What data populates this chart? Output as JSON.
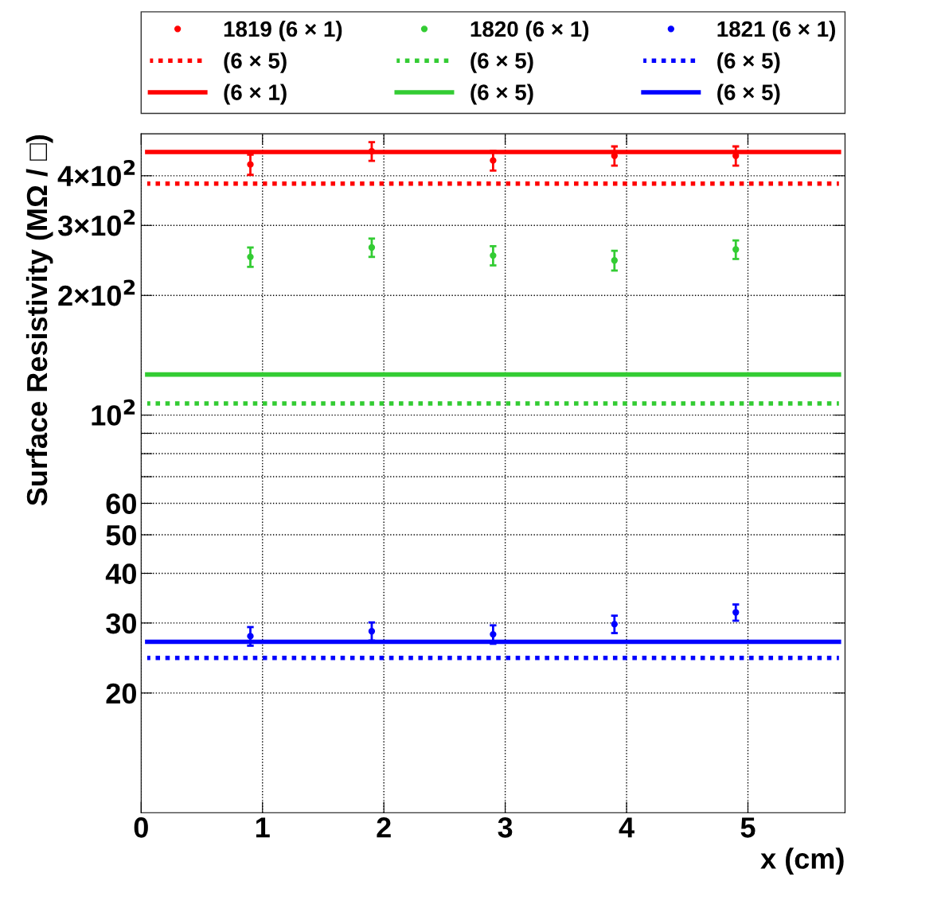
{
  "chart_data": {
    "type": "scatter",
    "xlabel": "x (cm)",
    "ylabel": "Surface Resistivity (MΩ / □)",
    "log": "y",
    "grid": true,
    "legend": "top",
    "xlim": [
      0,
      5.8
    ],
    "xticks": [
      0,
      1,
      2,
      3,
      4,
      5
    ],
    "ylim": [
      10,
      510
    ],
    "yticks": [
      20,
      30,
      40,
      50,
      60,
      {
        "value": 70,
        "label": null
      },
      {
        "value": 80,
        "label": null
      },
      {
        "value": 90,
        "label": null
      },
      {
        "value": 100,
        "label": "10$^{2}$"
      },
      {
        "value": 200,
        "label": "2×10$^{2}$"
      },
      {
        "value": 300,
        "label": "3×10$^{2}$"
      },
      {
        "value": 400,
        "label": "4×10$^{2}$"
      }
    ],
    "series": [
      {
        "name": "1819 (6 × 1)",
        "marker": "circle",
        "color": "#ff0000",
        "x": [
          0.9,
          1.9,
          2.9,
          3.9,
          4.9
        ],
        "values": [
          427,
          461,
          437,
          449,
          449
        ],
        "errors": [
          25,
          25,
          25,
          25,
          25
        ]
      },
      {
        "name": "(6 × 5)",
        "type": "line",
        "line_style": "dotted",
        "color": "#ff0000",
        "x": [
          0.05,
          5.75
        ],
        "values": [
          382,
          382
        ]
      },
      {
        "name": "(6 × 1)",
        "type": "line",
        "line_style": "solid",
        "color": "#ff0000",
        "x": [
          0.05,
          5.75
        ],
        "values": [
          459,
          459
        ]
      },
      {
        "name": "1820 (6 × 1)",
        "marker": "circle",
        "color": "#33cc33",
        "x": [
          0.9,
          1.9,
          2.9,
          3.9,
          4.9
        ],
        "values": [
          250,
          264,
          252,
          245,
          261
        ],
        "errors": [
          14,
          14,
          14,
          14,
          14
        ]
      },
      {
        "name": "(6 × 5)",
        "type": "line",
        "line_style": "dotted",
        "color": "#33cc33",
        "x": [
          0.05,
          5.75
        ],
        "values": [
          107,
          107
        ]
      },
      {
        "name": "(6 × 5)",
        "type": "line",
        "line_style": "solid",
        "color": "#33cc33",
        "x": [
          0.05,
          5.75
        ],
        "values": [
          126.5,
          126.5
        ]
      },
      {
        "name": "1821 (6 × 1)",
        "marker": "circle",
        "color": "#0000ff",
        "x": [
          0.9,
          1.9,
          2.9,
          3.9,
          4.9
        ],
        "values": [
          27.8,
          28.6,
          28.1,
          29.8,
          31.9
        ],
        "errors": [
          1.5,
          1.5,
          1.5,
          1.5,
          1.5
        ]
      },
      {
        "name": "(6 × 5)",
        "type": "line",
        "line_style": "dotted",
        "color": "#0000ff",
        "x": [
          0.05,
          5.75
        ],
        "values": [
          24.5,
          24.5
        ]
      },
      {
        "name": "(6 × 5)",
        "type": "line",
        "line_style": "solid",
        "color": "#0000ff",
        "x": [
          0.05,
          5.75
        ],
        "values": [
          26.9,
          26.9
        ]
      }
    ]
  }
}
